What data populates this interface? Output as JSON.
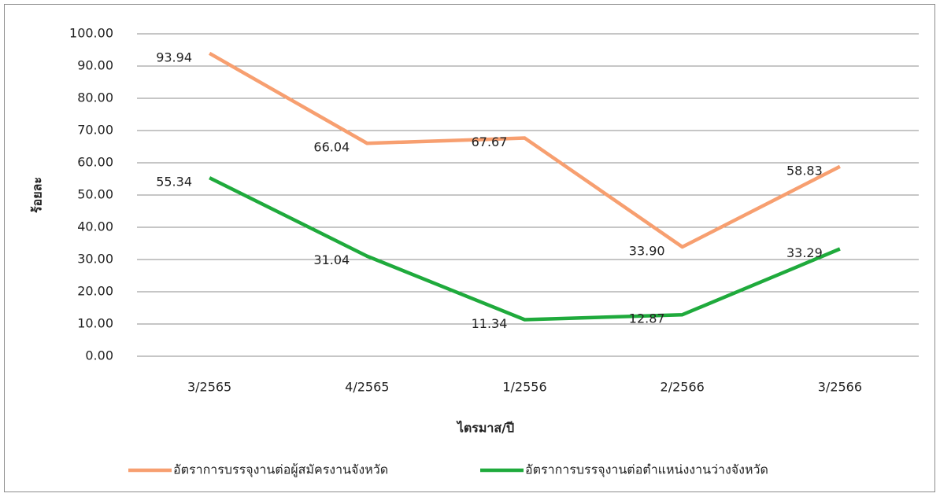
{
  "chart_data": {
    "type": "line",
    "y_label": "ร้อยละ",
    "x_label": "ไตรมาส/ปี",
    "categories": [
      "3/2565",
      "4/2565",
      "1/2556",
      "2/2566",
      "3/2566"
    ],
    "series": [
      {
        "name": "อัตราการบรรจุงานต่อผู้สมัครงานจังหวัด",
        "color": "#f79f70",
        "values": [
          93.94,
          66.04,
          67.67,
          33.9,
          58.83
        ],
        "value_labels": [
          "93.94",
          "66.04",
          "67.67",
          "33.90",
          "58.83"
        ]
      },
      {
        "name": "อัตราการบรรจุงานต่อตำแหน่งงานว่างจังหวัด",
        "color": "#1faa3c",
        "values": [
          55.34,
          31.04,
          11.34,
          12.87,
          33.29
        ],
        "value_labels": [
          "55.34",
          "31.04",
          "11.34",
          "12.87",
          "33.29"
        ]
      }
    ],
    "ylim": [
      0,
      100
    ],
    "yticks": [
      {
        "value": 0,
        "label": "0.00"
      },
      {
        "value": 10,
        "label": "10.00"
      },
      {
        "value": 20,
        "label": "20.00"
      },
      {
        "value": 30,
        "label": "30.00"
      },
      {
        "value": 40,
        "label": "40.00"
      },
      {
        "value": 50,
        "label": "50.00"
      },
      {
        "value": 60,
        "label": "60.00"
      },
      {
        "value": 70,
        "label": "70.00"
      },
      {
        "value": 80,
        "label": "80.00"
      },
      {
        "value": 90,
        "label": "90.00"
      },
      {
        "value": 100,
        "label": "100.00"
      }
    ],
    "grid": true,
    "legend": "bottom"
  }
}
